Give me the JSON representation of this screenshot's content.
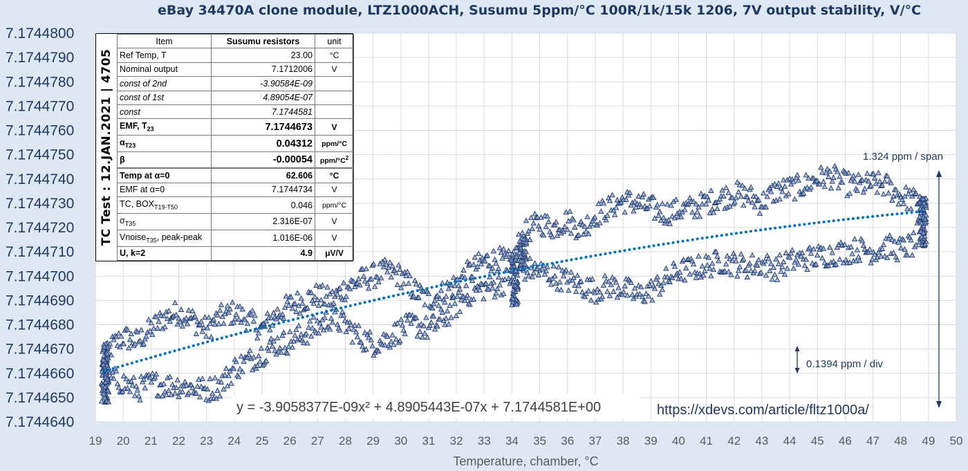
{
  "chart_data": {
    "type": "scatter",
    "title": "eBay 34470A clone module, LTZ1000ACH, Susumu 5ppm/°C 100R/1k/15k 1206,  7V output stability,  V/°C",
    "xlabel": "Temperature, chamber, °C",
    "ylabel": "",
    "xlim": [
      19,
      50
    ],
    "ylim": [
      7.174464,
      7.17448
    ],
    "x_ticks": [
      "19",
      "20",
      "21",
      "22",
      "23",
      "24",
      "25",
      "26",
      "27",
      "28",
      "29",
      "30",
      "31",
      "32",
      "33",
      "34",
      "35",
      "36",
      "37",
      "38",
      "39",
      "40",
      "41",
      "42",
      "43",
      "44",
      "45",
      "46",
      "47",
      "48",
      "49",
      "50"
    ],
    "y_ticks": [
      "7.1744640",
      "7.1744650",
      "7.1744660",
      "7.1744670",
      "7.1744680",
      "7.1744690",
      "7.1744700",
      "7.1744710",
      "7.1744720",
      "7.1744730",
      "7.1744740",
      "7.1744750",
      "7.1744760",
      "7.1744770",
      "7.1744780",
      "7.1744790",
      "7.1744800"
    ],
    "grid": true,
    "series": [
      {
        "marker": "triangle",
        "color": "#1f3b73",
        "upper_path": [
          [
            19.3,
            7.1744662
          ],
          [
            19.5,
            7.174467
          ],
          [
            20,
            7.1744675
          ],
          [
            20.5,
            7.1744673
          ],
          [
            21,
            7.1744678
          ],
          [
            21.5,
            7.1744683
          ],
          [
            22,
            7.1744685
          ],
          [
            22.5,
            7.1744682
          ],
          [
            23,
            7.1744678
          ],
          [
            23.5,
            7.1744683
          ],
          [
            24,
            7.1744685
          ],
          [
            24.5,
            7.1744682
          ],
          [
            25,
            7.1744678
          ],
          [
            25.5,
            7.1744684
          ],
          [
            26,
            7.1744688
          ],
          [
            26.5,
            7.174469
          ],
          [
            27,
            7.1744692
          ],
          [
            27.5,
            7.174469
          ],
          [
            28,
            7.1744695
          ],
          [
            28.5,
            7.1744698
          ],
          [
            29,
            7.17447
          ],
          [
            29.5,
            7.1744702
          ],
          [
            30,
            7.17447
          ],
          [
            30.5,
            7.1744694
          ],
          [
            31,
            7.174469
          ],
          [
            31.5,
            7.1744693
          ],
          [
            32,
            7.1744697
          ],
          [
            32.5,
            7.1744702
          ],
          [
            33,
            7.1744706
          ],
          [
            33.5,
            7.1744707
          ],
          [
            34,
            7.1744705
          ],
          [
            34.3,
            7.1744715
          ],
          [
            34.6,
            7.1744719
          ],
          [
            35,
            7.1744722
          ],
          [
            35.5,
            7.174472
          ],
          [
            36,
            7.1744723
          ],
          [
            36.5,
            7.1744719
          ],
          [
            37,
            7.1744725
          ],
          [
            37.5,
            7.1744728
          ],
          [
            38,
            7.1744731
          ],
          [
            38.5,
            7.174473
          ],
          [
            39,
            7.1744728
          ],
          [
            39.5,
            7.1744726
          ],
          [
            40,
            7.1744727
          ],
          [
            40.5,
            7.1744728
          ],
          [
            41,
            7.174473
          ],
          [
            41.5,
            7.1744732
          ],
          [
            42,
            7.1744734
          ],
          [
            42.5,
            7.1744733
          ],
          [
            43,
            7.174473
          ],
          [
            43.5,
            7.1744735
          ],
          [
            44,
            7.1744736
          ],
          [
            44.5,
            7.1744737
          ],
          [
            45,
            7.174474
          ],
          [
            45.5,
            7.1744741
          ],
          [
            46,
            7.1744738
          ],
          [
            46.5,
            7.1744737
          ],
          [
            47,
            7.1744738
          ],
          [
            47.5,
            7.1744737
          ],
          [
            48,
            7.1744733
          ],
          [
            48.5,
            7.1744731
          ],
          [
            48.8,
            7.1744732
          ]
        ],
        "lower_path": [
          [
            19.3,
            7.174465
          ],
          [
            19.5,
            7.1744658
          ],
          [
            20,
            7.1744656
          ],
          [
            20.5,
            7.1744653
          ],
          [
            21,
            7.1744656
          ],
          [
            21.5,
            7.1744655
          ],
          [
            22,
            7.1744655
          ],
          [
            22.5,
            7.1744654
          ],
          [
            23,
            7.1744653
          ],
          [
            23.5,
            7.1744655
          ],
          [
            24,
            7.1744662
          ],
          [
            24.5,
            7.1744665
          ],
          [
            25,
            7.1744668
          ],
          [
            25.5,
            7.1744672
          ],
          [
            26,
            7.1744673
          ],
          [
            26.5,
            7.1744676
          ],
          [
            27,
            7.1744679
          ],
          [
            27.5,
            7.1744683
          ],
          [
            28,
            7.174468
          ],
          [
            28.5,
            7.1744675
          ],
          [
            29,
            7.1744672
          ],
          [
            29.5,
            7.1744674
          ],
          [
            30,
            7.1744678
          ],
          [
            30.5,
            7.174468
          ],
          [
            31,
            7.1744678
          ],
          [
            31.5,
            7.1744682
          ],
          [
            32,
            7.1744688
          ],
          [
            32.5,
            7.1744693
          ],
          [
            33,
            7.1744695
          ],
          [
            33.5,
            7.1744696
          ],
          [
            34,
            7.17447
          ],
          [
            34.5,
            7.1744703
          ],
          [
            35,
            7.1744702
          ],
          [
            35.5,
            7.17447
          ],
          [
            36,
            7.1744698
          ],
          [
            36.5,
            7.1744696
          ],
          [
            37,
            7.1744694
          ],
          [
            37.5,
            7.1744696
          ],
          [
            38,
            7.1744695
          ],
          [
            38.5,
            7.1744692
          ],
          [
            39,
            7.1744694
          ],
          [
            39.5,
            7.1744698
          ],
          [
            40,
            7.1744702
          ],
          [
            40.5,
            7.1744703
          ],
          [
            41,
            7.1744704
          ],
          [
            41.5,
            7.1744706
          ],
          [
            42,
            7.1744705
          ],
          [
            42.5,
            7.1744704
          ],
          [
            43,
            7.1744705
          ],
          [
            43.5,
            7.1744703
          ],
          [
            44,
            7.1744706
          ],
          [
            44.5,
            7.1744707
          ],
          [
            45,
            7.1744708
          ],
          [
            45.5,
            7.1744709
          ],
          [
            46,
            7.174471
          ],
          [
            46.5,
            7.1744711
          ],
          [
            47,
            7.174471
          ],
          [
            47.5,
            7.1744712
          ],
          [
            48,
            7.1744711
          ],
          [
            48.5,
            7.1744713
          ],
          [
            48.8,
            7.1744725
          ]
        ]
      },
      {
        "style": "dotted",
        "color": "#0070c0",
        "fit": {
          "a": -3.9058377e-09,
          "b": 4.8905443e-07,
          "c": 7.1744581
        },
        "x_range": [
          19.3,
          48.8
        ]
      }
    ],
    "annotations": {
      "equation": "y = -3.9058377E-09x² + 4.8905443E-07x + 7.1744581E+00",
      "url": "https://xdevs.com/article/fltz1000a/",
      "span_label": "1.324 ppm / span",
      "div_label": "0.1394 ppm / div"
    }
  },
  "stats_table": {
    "side_label": "TC Test : 12.JAN.2021 | 4705",
    "headers": [
      "Item",
      "Susumu resistors",
      "unit"
    ],
    "rows": [
      {
        "name": "Ref Temp, T",
        "value": "23.00",
        "unit": "°C"
      },
      {
        "name": "Nominal output",
        "value": "7.1712006",
        "unit": "V"
      },
      {
        "name": "const of 2nd",
        "value": "-3.90584E-09",
        "unit": ""
      },
      {
        "name": "const of 1st",
        "value": "4.89054E-07",
        "unit": ""
      },
      {
        "name": "const",
        "value": "7.1744581",
        "unit": ""
      },
      {
        "name": "EMF, T",
        "sub": "23",
        "value": "7.1744673",
        "unit": "V"
      },
      {
        "name": "α",
        "sub": "T23",
        "value": "0.04312",
        "unit": "ppm/°C"
      },
      {
        "name": "β",
        "value": "-0.00054",
        "unit": "ppm/°C",
        "unit_sup": "2"
      },
      {
        "name": "",
        "value": "",
        "unit": ""
      },
      {
        "name": "Temp at α=0",
        "value": "62.606",
        "unit": "°C"
      },
      {
        "name": "EMF at α=0",
        "value": "7.1744734",
        "unit": "V"
      },
      {
        "name": "TC, BOX",
        "sub": "T19-T50",
        "value": "0.046",
        "unit": "ppm/°C"
      },
      {
        "name": "σ",
        "sub": "T35",
        "value": "2.316E-07",
        "unit": "V"
      },
      {
        "name": "Vnoise",
        "sub": "T35",
        "name_suffix": ", peak-peak",
        "value": "1.016E-06",
        "unit": "V"
      },
      {
        "name": "U, k=2",
        "value": "4.9",
        "unit": "μV/V"
      }
    ]
  }
}
